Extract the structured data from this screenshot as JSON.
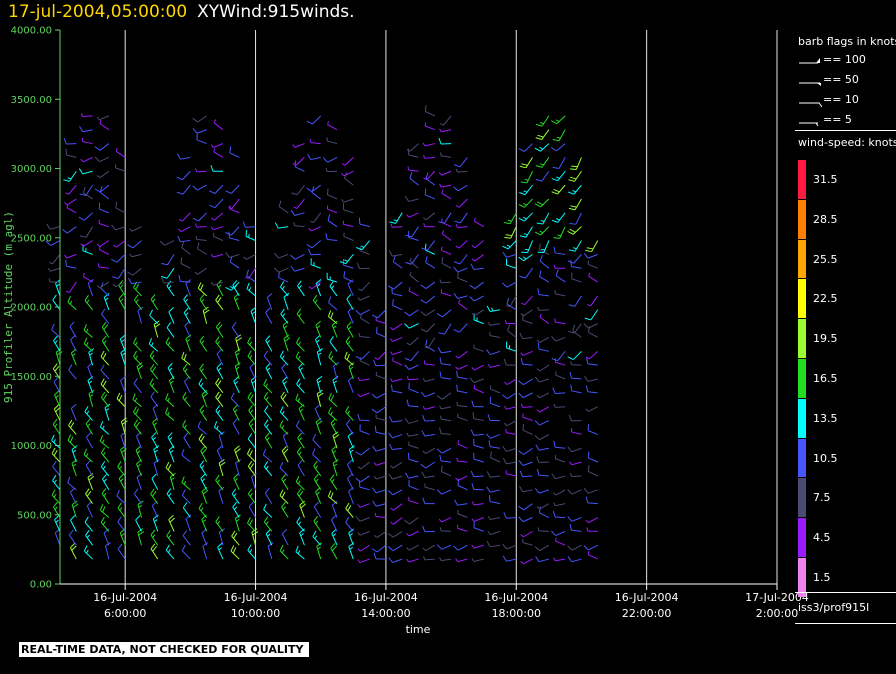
{
  "header": {
    "timestamp": "17-jul-2004,05:00:00",
    "title": "XYWind:915winds."
  },
  "notice": "REAL-TIME DATA, NOT CHECKED FOR QUALITY",
  "source_label": "iss3/prof915l",
  "legend": {
    "barb_title": "barb flags in knots",
    "barbs": [
      {
        "label": "== 100"
      },
      {
        "label": "== 50"
      },
      {
        "label": "== 10"
      },
      {
        "label": "== 5"
      }
    ],
    "speed_title": "wind-speed: knots",
    "colors": [
      {
        "label": "31.5",
        "color": "#ff1a40"
      },
      {
        "label": "28.5",
        "color": "#ff7f00"
      },
      {
        "label": "25.5",
        "color": "#ffa500"
      },
      {
        "label": "22.5",
        "color": "#ffff00"
      },
      {
        "label": "19.5",
        "color": "#9aff32"
      },
      {
        "label": "16.5",
        "color": "#22dd22"
      },
      {
        "label": "13.5",
        "color": "#00ffff"
      },
      {
        "label": "10.5",
        "color": "#4655ff"
      },
      {
        "label": "7.5",
        "color": "#4a4a72"
      },
      {
        "label": "4.5",
        "color": "#9a1aff"
      },
      {
        "label": "1.5",
        "color": "#ee82ee"
      }
    ]
  },
  "chart_data": {
    "type": "scatter",
    "subtype": "wind-barb time-height plot",
    "xlabel": "time",
    "ylabel": "915 Profiler Altitude (m agl)",
    "ylim": [
      0,
      4000
    ],
    "xlim_hours": [
      4.0,
      26.0
    ],
    "y_ticks": [
      "0.00",
      "500.00",
      "1000.00",
      "1500.00",
      "2000.00",
      "2500.00",
      "3000.00",
      "3500.00",
      "4000.00"
    ],
    "y_tick_values": [
      0,
      500,
      1000,
      1500,
      2000,
      2500,
      3000,
      3500,
      4000
    ],
    "x_ticks": [
      {
        "hour": 6,
        "date": "16-Jul-2004",
        "time": "6:00:00"
      },
      {
        "hour": 10,
        "date": "16-Jul-2004",
        "time": "10:00:00"
      },
      {
        "hour": 14,
        "date": "16-Jul-2004",
        "time": "14:00:00"
      },
      {
        "hour": 18,
        "date": "16-Jul-2004",
        "time": "18:00:00"
      },
      {
        "hour": 22,
        "date": "16-Jul-2004",
        "time": "22:00:00"
      },
      {
        "hour": 26,
        "date": "17-Jul-2004",
        "time": "2:00:00"
      }
    ],
    "grid": "vertical",
    "data_extent": {
      "time_start_hours": 4.0,
      "time_end_hours": 20.5,
      "alt_min": 180,
      "alt_max": 3500
    },
    "profile_interval_minutes": 30,
    "gate_spacing_m": 100,
    "note_regions": [
      {
        "time": [
          5.5,
          13.5
        ],
        "alt": [
          200,
          2100
        ],
        "dominant_speed_knots": [
          10,
          20
        ],
        "direction": "southwesterly"
      },
      {
        "time": [
          13.5,
          20.5
        ],
        "alt": [
          200,
          1600
        ],
        "dominant_speed_knots": [
          5,
          12
        ],
        "direction": "westerly"
      },
      {
        "time": [
          17.0,
          20.5
        ],
        "alt": [
          2400,
          3300
        ],
        "dominant_speed_knots": [
          10,
          20
        ],
        "direction": "northwesterly"
      }
    ]
  }
}
